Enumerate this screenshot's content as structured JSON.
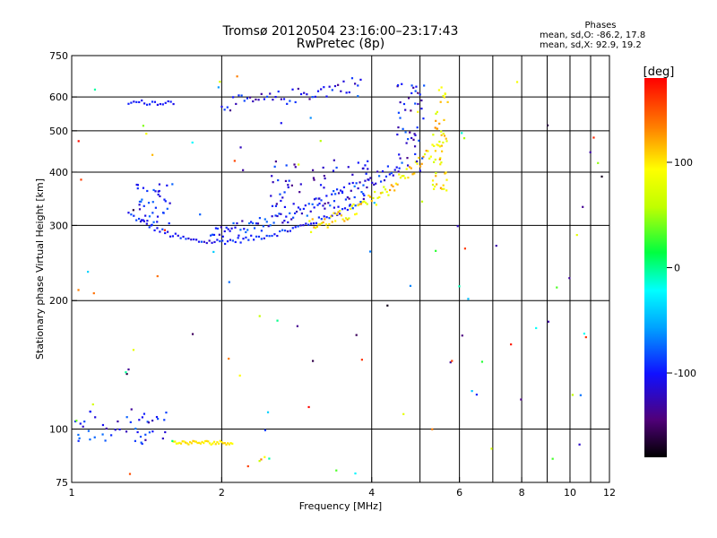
{
  "header": {
    "title_line1": "Tromsø 20120504 23:16:00–23:17:43",
    "title_line2": "RwPretec (8p)"
  },
  "phase_stats": {
    "heading": "Phases",
    "line1": "mean, sd,O: -86.2, 17.8",
    "line2": "mean, sd,X:  92.9, 19.2"
  },
  "colorbar": {
    "label": "[deg]",
    "ticks": [
      {
        "value": 100,
        "label": "100"
      },
      {
        "value": 0,
        "label": "0"
      },
      {
        "value": -100,
        "label": "-100"
      }
    ],
    "range": [
      -180,
      180
    ]
  },
  "chart_data": {
    "type": "scatter",
    "title": "Tromsø 20120504 23:16:00–23:17:43",
    "subtitle": "RwPretec (8p)",
    "xlabel": "Frequency [MHz]",
    "ylabel": "Stationary phase Virtual Height [km]",
    "x_scale": "log",
    "y_scale": "log",
    "xlim": [
      1,
      12
    ],
    "ylim": [
      75,
      750
    ],
    "x_ticks": [
      {
        "value": 1,
        "label": "1"
      },
      {
        "value": 2,
        "label": "2"
      },
      {
        "value": 4,
        "label": "4"
      },
      {
        "value": 6,
        "label": "6"
      },
      {
        "value": 8,
        "label": "8"
      },
      {
        "value": 10,
        "label": "10"
      },
      {
        "value": 12,
        "label": "12"
      }
    ],
    "x_grid": [
      2,
      4,
      5,
      6,
      7,
      8,
      9,
      10,
      11
    ],
    "y_ticks": [
      {
        "value": 75,
        "label": "75"
      },
      {
        "value": 100,
        "label": "100"
      },
      {
        "value": 200,
        "label": "200"
      },
      {
        "value": 300,
        "label": "300"
      },
      {
        "value": 400,
        "label": "400"
      },
      {
        "value": 500,
        "label": "500"
      },
      {
        "value": 600,
        "label": "600"
      },
      {
        "value": 750,
        "label": "750"
      }
    ],
    "y_grid": [
      100,
      200,
      300,
      400,
      500,
      600
    ],
    "color_scale": "phase_deg_rainbow",
    "point_groups": [
      {
        "desc": "F-region O trace lower branch",
        "x_range": [
          1.3,
          3.8
        ],
        "shape": "arc",
        "y_start": 320,
        "y_min": 275,
        "y_end": 340,
        "phase": -100,
        "count": 90
      },
      {
        "desc": "F-region O trace upper",
        "x_range": [
          1.9,
          4.6
        ],
        "shape": "rising",
        "y_start": 290,
        "y_end": 420,
        "phase": -100,
        "count": 110
      },
      {
        "desc": "F-region X trace",
        "x_range": [
          3.0,
          5.6
        ],
        "shape": "rising",
        "y_start": 300,
        "y_end": 480,
        "phase": 100,
        "count": 90
      },
      {
        "desc": "Cusp near foF2 O",
        "x_range": [
          4.5,
          5.1
        ],
        "shape": "vertical",
        "y_start": 380,
        "y_end": 650,
        "phase": -110,
        "count": 45
      },
      {
        "desc": "Cusp near foF2 X",
        "x_range": [
          5.3,
          5.7
        ],
        "shape": "vertical",
        "y_start": 360,
        "y_end": 640,
        "phase": 100,
        "count": 45
      },
      {
        "desc": "Multiple hop echoes",
        "x_range": [
          1.3,
          1.6
        ],
        "shape": "band",
        "y_start": 575,
        "y_end": 590,
        "phase": -100,
        "count": 18
      },
      {
        "desc": "Multiple hop echoes high",
        "x_range": [
          2.0,
          3.8
        ],
        "shape": "rising",
        "y_start": 580,
        "y_end": 650,
        "phase": -110,
        "count": 50
      },
      {
        "desc": "Blob near 1.5 MHz",
        "x_range": [
          1.35,
          1.6
        ],
        "shape": "cloud",
        "y_start": 300,
        "y_end": 380,
        "phase": -100,
        "count": 40
      },
      {
        "desc": "Second hop mid",
        "x_range": [
          2.5,
          4.0
        ],
        "shape": "cloud",
        "y_start": 330,
        "y_end": 430,
        "phase": -110,
        "count": 60
      },
      {
        "desc": "E-region low left",
        "x_range": [
          1.0,
          1.55
        ],
        "shape": "cloud",
        "y_start": 92,
        "y_end": 110,
        "phase": -100,
        "count": 45
      },
      {
        "desc": "E-region yellow trace",
        "x_range": [
          1.6,
          2.1
        ],
        "shape": "band",
        "y_start": 92,
        "y_end": 94,
        "phase": 100,
        "count": 40
      },
      {
        "desc": "Scattered noise",
        "x_range": [
          1.0,
          12.0
        ],
        "shape": "noise",
        "y_start": 78,
        "y_end": 700,
        "phase": 0,
        "count": 100
      }
    ]
  }
}
